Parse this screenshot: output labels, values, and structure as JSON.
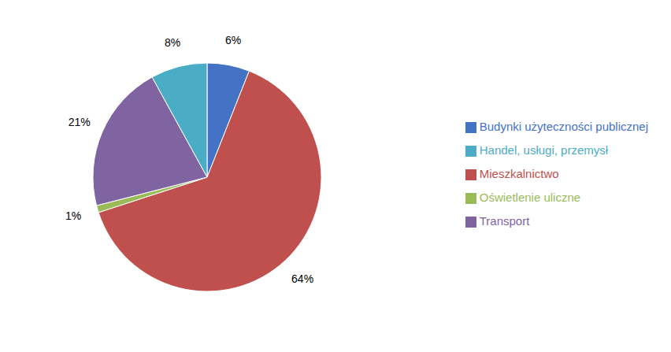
{
  "chart_data": {
    "type": "pie",
    "categories": [
      "Budynki użyteczności publicznej",
      "Mieszkalnictwo",
      "Oświetlenie uliczne",
      "Transport",
      "Handel, usługi, przemysł"
    ],
    "values": [
      6,
      64,
      1,
      21,
      8
    ],
    "value_labels": [
      "6%",
      "64%",
      "1%",
      "21%",
      "8%"
    ],
    "colors": [
      "#4472C4",
      "#C0504D",
      "#9BBB59",
      "#8064A2",
      "#4BACC6"
    ],
    "data_labels": true,
    "legend": "right"
  }
}
